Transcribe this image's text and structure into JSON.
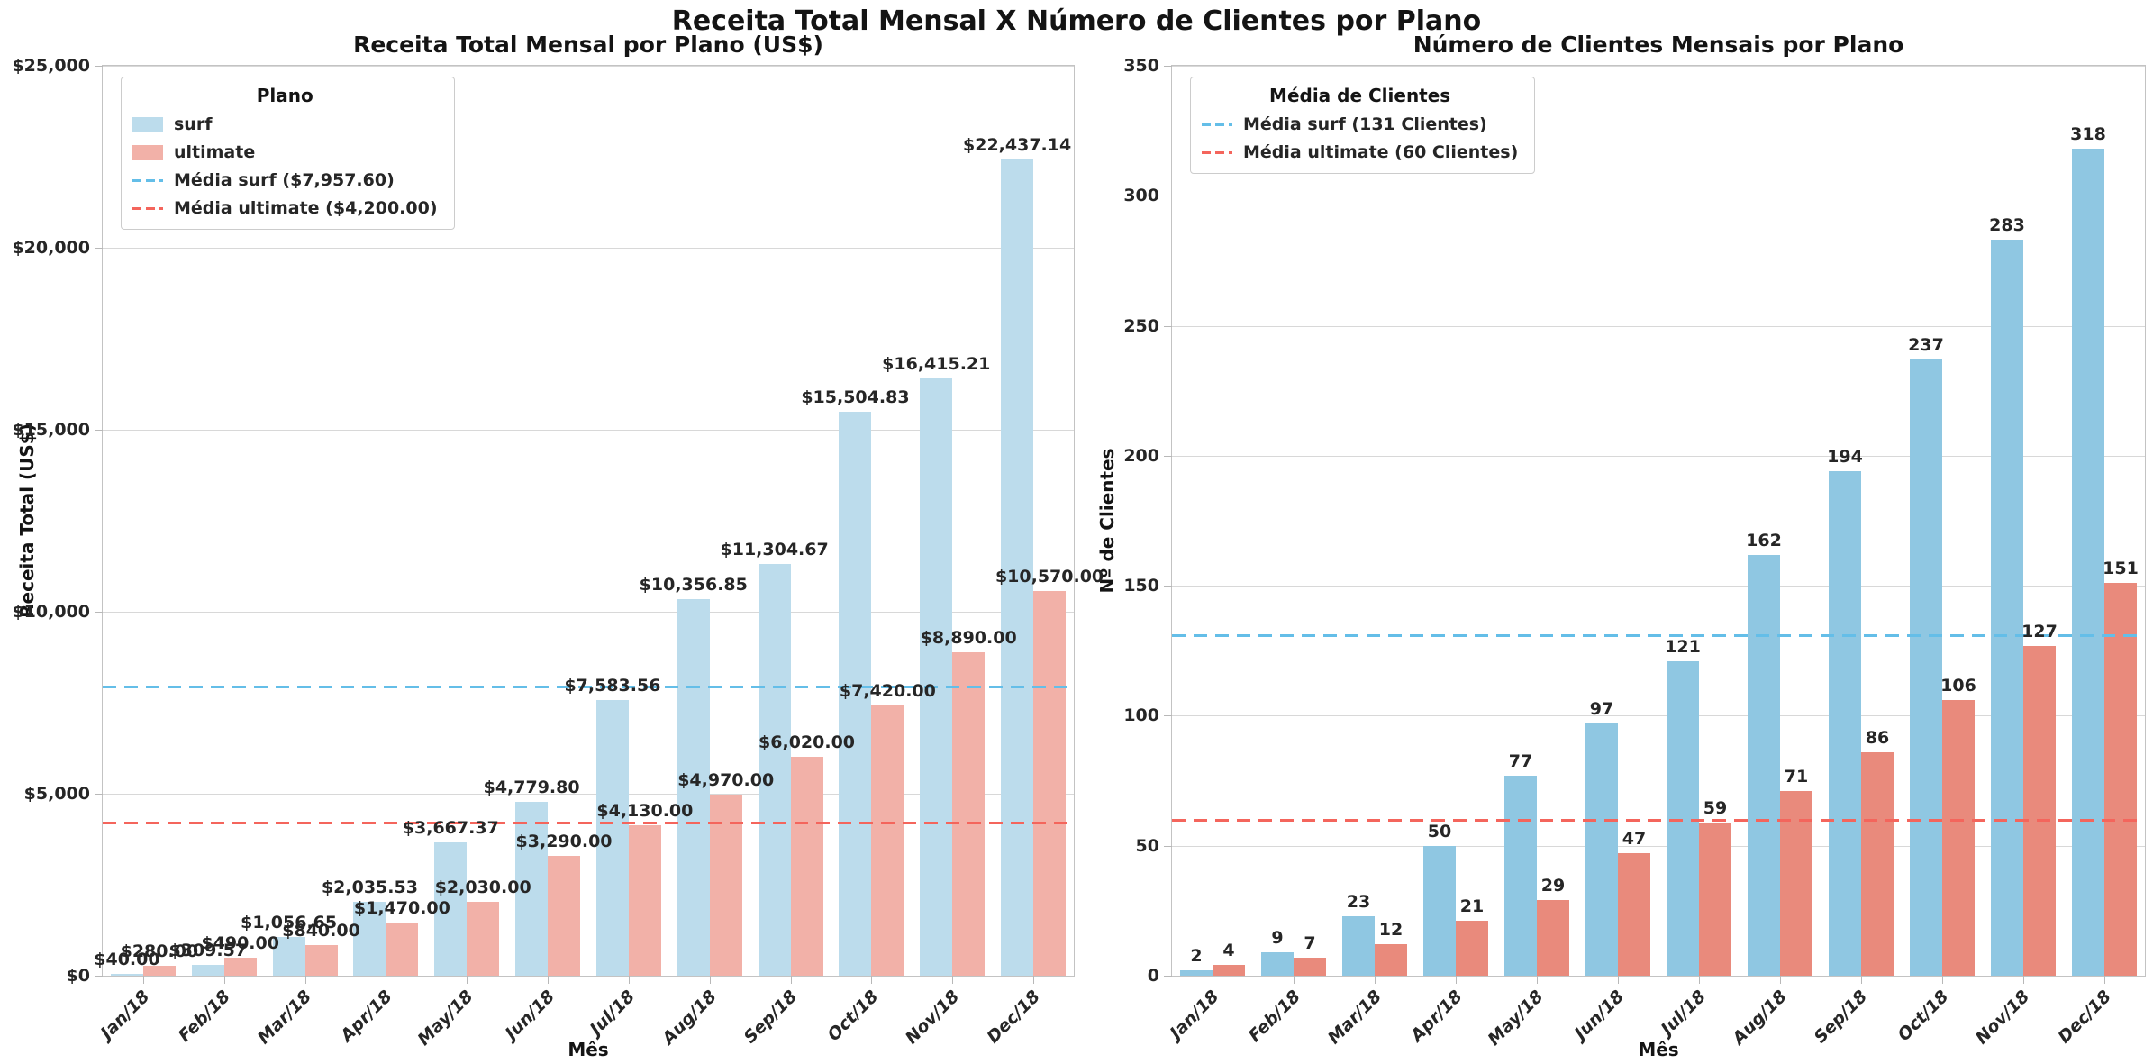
{
  "figure": {
    "suptitle": "Receita Total Mensal X Número de Clientes por Plano"
  },
  "chart_data": [
    {
      "type": "bar",
      "title": "Receita Total Mensal por Plano (US$)",
      "xlabel": "Mês",
      "ylabel": "Receita Total (US$)",
      "ylim": [
        0,
        25000
      ],
      "grid": true,
      "legend_position": "upper left",
      "legend_title": "Plano",
      "yticks": [
        {
          "value": 0,
          "label": "$0"
        },
        {
          "value": 5000,
          "label": "$5,000"
        },
        {
          "value": 10000,
          "label": "$10,000"
        },
        {
          "value": 15000,
          "label": "$15,000"
        },
        {
          "value": 20000,
          "label": "$20,000"
        },
        {
          "value": 25000,
          "label": "$25,000"
        }
      ],
      "categories": [
        "Jan/18",
        "Feb/18",
        "Mar/18",
        "Apr/18",
        "May/18",
        "Jun/18",
        "Jul/18",
        "Aug/18",
        "Sep/18",
        "Oct/18",
        "Nov/18",
        "Dec/18"
      ],
      "series": [
        {
          "name": "surf",
          "color": "#bcdcec",
          "values": [
            40.0,
            309.57,
            1056.65,
            2035.53,
            3667.37,
            4779.8,
            7583.56,
            10356.85,
            11304.67,
            15504.83,
            16415.21,
            22437.14
          ],
          "labels": [
            "$40.00",
            "$309.57",
            "$1,056.65",
            "$2,035.53",
            "$3,667.37",
            "$4,779.80",
            "$7,583.56",
            "$10,356.85",
            "$11,304.67",
            "$15,504.83",
            "$16,415.21",
            "$22,437.14"
          ]
        },
        {
          "name": "ultimate",
          "color": "#f2b1a8",
          "values": [
            280.0,
            490.0,
            840.0,
            1470.0,
            2030.0,
            3290.0,
            4130.0,
            4970.0,
            6020.0,
            7420.0,
            8890.0,
            10570.0
          ],
          "labels": [
            "$280.00",
            "$490.00",
            "$840.00",
            "$1,470.00",
            "$2,030.00",
            "$3,290.00",
            "$4,130.00",
            "$4,970.00",
            "$6,020.00",
            "$7,420.00",
            "$8,890.00",
            "$10,570.00"
          ]
        }
      ],
      "mean_lines": [
        {
          "label": "Média surf ($7,957.60)",
          "value": 7957.6,
          "color": "#64bee8"
        },
        {
          "label": "Média ultimate ($4,200.00)",
          "value": 4200.0,
          "color": "#f4655c"
        }
      ],
      "legend_items": [
        {
          "type": "patch",
          "color": "#bcdcec",
          "label": "surf"
        },
        {
          "type": "patch",
          "color": "#f2b1a8",
          "label": "ultimate"
        },
        {
          "type": "dash",
          "color": "#64bee8",
          "label": "Média surf ($7,957.60)"
        },
        {
          "type": "dash",
          "color": "#f4655c",
          "label": "Média ultimate ($4,200.00)"
        }
      ]
    },
    {
      "type": "bar",
      "title": "Número de Clientes Mensais por Plano",
      "xlabel": "Mês",
      "ylabel": "Nº de Clientes",
      "ylim": [
        0,
        350
      ],
      "grid": true,
      "legend_position": "upper left",
      "legend_title": "Média de Clientes",
      "yticks": [
        {
          "value": 0,
          "label": "0"
        },
        {
          "value": 50,
          "label": "50"
        },
        {
          "value": 100,
          "label": "100"
        },
        {
          "value": 150,
          "label": "150"
        },
        {
          "value": 200,
          "label": "200"
        },
        {
          "value": 250,
          "label": "250"
        },
        {
          "value": 300,
          "label": "300"
        },
        {
          "value": 350,
          "label": "350"
        }
      ],
      "categories": [
        "Jan/18",
        "Feb/18",
        "Mar/18",
        "Apr/18",
        "May/18",
        "Jun/18",
        "Jul/18",
        "Aug/18",
        "Sep/18",
        "Oct/18",
        "Nov/18",
        "Dec/18"
      ],
      "series": [
        {
          "name": "surf",
          "color": "#8fc7e2",
          "values": [
            2,
            9,
            23,
            50,
            77,
            97,
            121,
            162,
            194,
            237,
            283,
            318
          ],
          "labels": [
            "2",
            "9",
            "23",
            "50",
            "77",
            "97",
            "121",
            "162",
            "194",
            "237",
            "283",
            "318"
          ]
        },
        {
          "name": "ultimate",
          "color": "#e98a7c",
          "values": [
            4,
            7,
            12,
            21,
            29,
            47,
            59,
            71,
            86,
            106,
            127,
            151
          ],
          "labels": [
            "4",
            "7",
            "12",
            "21",
            "29",
            "47",
            "59",
            "71",
            "86",
            "106",
            "127",
            "151"
          ]
        }
      ],
      "mean_lines": [
        {
          "label": "Média surf (131 Clientes)",
          "value": 131,
          "color": "#64bee8"
        },
        {
          "label": "Média ultimate (60 Clientes)",
          "value": 60,
          "color": "#f4655c"
        }
      ],
      "legend_items": [
        {
          "type": "dash",
          "color": "#64bee8",
          "label": "Média surf (131 Clientes)"
        },
        {
          "type": "dash",
          "color": "#f4655c",
          "label": "Média ultimate (60 Clientes)"
        }
      ]
    }
  ]
}
